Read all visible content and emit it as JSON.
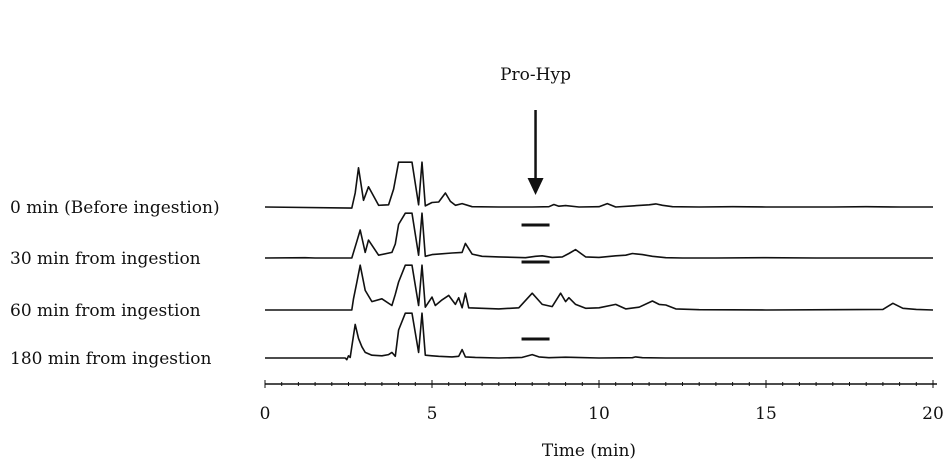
{
  "chart_data": {
    "type": "line",
    "title": "",
    "xlabel": "Time (min)",
    "ylabel": "",
    "xlim": [
      0,
      20
    ],
    "x_ticks": [
      0,
      5,
      10,
      15,
      20
    ],
    "x_tick_labels": [
      "0",
      "5",
      "10",
      "15",
      "20"
    ],
    "grid": false,
    "legend": "none",
    "annotation": {
      "label": "Pro-Hyp",
      "x": 8.1
    },
    "series": [
      {
        "name": "0 min (Before ingestion)",
        "x": [
          0,
          2.6,
          2.7,
          2.8,
          2.95,
          3.1,
          3.4,
          3.7,
          3.85,
          4.0,
          4.2,
          4.4,
          4.6,
          4.7,
          4.8,
          5.0,
          5.2,
          5.4,
          5.55,
          5.7,
          5.9,
          6.2,
          7.0,
          8.0,
          8.5,
          8.65,
          8.8,
          9.0,
          9.4,
          10.0,
          10.25,
          10.5,
          11.0,
          11.5,
          11.7,
          11.9,
          12.2,
          13.0,
          14.0,
          15.0,
          16.0,
          17.0,
          18.0,
          19.0,
          20.0
        ],
        "y": [
          0,
          -0.2,
          2.5,
          7.0,
          1.2,
          3.6,
          0.3,
          0.4,
          3.2,
          8.0,
          8.0,
          8.0,
          0.4,
          8.0,
          0.2,
          0.8,
          0.9,
          2.5,
          1.0,
          0.3,
          0.6,
          0.05,
          0.0,
          0.0,
          0.05,
          0.45,
          0.15,
          0.25,
          0.0,
          0.05,
          0.6,
          0.0,
          0.2,
          0.4,
          0.55,
          0.3,
          0.05,
          0.0,
          0.05,
          0.0,
          0.0,
          0.0,
          0.05,
          0.0,
          0.0
        ]
      },
      {
        "name": "30 min from ingestion",
        "x": [
          0,
          1.2,
          1.5,
          2.6,
          2.75,
          2.85,
          3.0,
          3.1,
          3.4,
          3.8,
          3.9,
          4.0,
          4.2,
          4.4,
          4.6,
          4.7,
          4.8,
          5.0,
          5.6,
          5.9,
          6.0,
          6.2,
          6.5,
          7.0,
          7.8,
          8.1,
          8.3,
          8.6,
          8.9,
          9.1,
          9.3,
          9.6,
          10.0,
          10.5,
          10.8,
          11.0,
          11.3,
          11.6,
          12.0,
          12.5,
          13.5,
          15.0,
          16.5,
          18.0,
          19.0,
          20.0
        ],
        "y": [
          0,
          0.05,
          0.0,
          0.0,
          3.0,
          5.0,
          1.0,
          3.2,
          0.5,
          1.0,
          2.5,
          6.0,
          8.0,
          8.0,
          0.5,
          8.0,
          0.3,
          0.6,
          0.9,
          1.0,
          2.6,
          0.7,
          0.3,
          0.2,
          0.05,
          0.3,
          0.4,
          0.1,
          0.2,
          0.8,
          1.5,
          0.2,
          0.1,
          0.4,
          0.5,
          0.8,
          0.6,
          0.3,
          0.05,
          0.0,
          0.0,
          0.05,
          0.0,
          0.0,
          0.0,
          0.0
        ]
      },
      {
        "name": "60 min from ingestion",
        "x": [
          0,
          2.6,
          2.65,
          2.75,
          2.85,
          3.0,
          3.2,
          3.5,
          3.8,
          3.9,
          4.0,
          4.2,
          4.4,
          4.6,
          4.7,
          4.8,
          5.0,
          5.1,
          5.3,
          5.5,
          5.7,
          5.8,
          5.9,
          6.0,
          6.1,
          7.0,
          7.6,
          8.0,
          8.3,
          8.6,
          8.85,
          9.0,
          9.1,
          9.3,
          9.6,
          10.0,
          10.5,
          10.8,
          11.2,
          11.6,
          11.8,
          12.0,
          12.3,
          13.0,
          15.0,
          17.0,
          18.5,
          18.8,
          19.1,
          19.5,
          20.0
        ],
        "y": [
          0,
          0.0,
          2.0,
          5.0,
          8.0,
          3.5,
          1.5,
          2.0,
          0.8,
          2.8,
          5.0,
          8.0,
          8.0,
          0.8,
          8.0,
          0.5,
          2.3,
          0.8,
          1.8,
          2.6,
          1.0,
          2.2,
          0.4,
          3.0,
          0.4,
          0.2,
          0.4,
          3.0,
          1.0,
          0.6,
          3.0,
          1.5,
          2.2,
          1.0,
          0.3,
          0.4,
          1.0,
          0.2,
          0.5,
          1.6,
          1.0,
          0.9,
          0.2,
          0.05,
          0.0,
          0.05,
          0.1,
          1.2,
          0.3,
          0.1,
          0.0
        ]
      },
      {
        "name": "180 min from ingestion",
        "x": [
          0,
          2.4,
          2.45,
          2.5,
          2.55,
          2.6,
          2.7,
          2.8,
          2.9,
          3.0,
          3.2,
          3.5,
          3.7,
          3.8,
          3.9,
          4.0,
          4.2,
          4.4,
          4.6,
          4.7,
          4.8,
          5.0,
          5.2,
          5.6,
          5.8,
          5.9,
          6.0,
          6.3,
          7.0,
          7.7,
          8.0,
          8.2,
          8.5,
          9.0,
          9.3,
          10.0,
          11.0,
          11.1,
          11.3,
          12.0,
          14.0,
          16.0,
          18.0,
          20.0
        ],
        "y": [
          0,
          0.0,
          -0.3,
          0.4,
          0.1,
          2.0,
          6.0,
          3.5,
          2.0,
          1.0,
          0.5,
          0.4,
          0.6,
          1.0,
          0.3,
          5.0,
          8.0,
          8.0,
          1.0,
          8.0,
          0.5,
          0.4,
          0.3,
          0.2,
          0.3,
          1.5,
          0.2,
          0.1,
          0.0,
          0.1,
          0.6,
          0.2,
          0.05,
          0.15,
          0.1,
          0.0,
          0.05,
          0.2,
          0.05,
          0.0,
          0.0,
          0.0,
          0.0,
          0.0
        ]
      }
    ]
  }
}
